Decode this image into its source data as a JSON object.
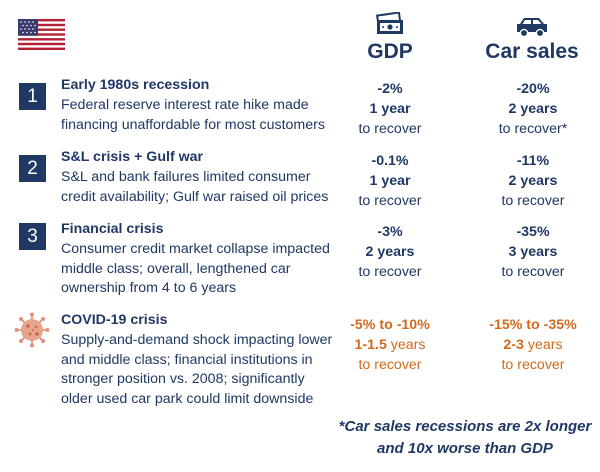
{
  "header": {
    "flag_icon": "us-flag-icon",
    "gdp": {
      "icon": "money-icon",
      "label": "GDP"
    },
    "car_sales": {
      "icon": "car-icon",
      "label": "Car sales"
    }
  },
  "rows": [
    {
      "badge": "1",
      "title": "Early 1980s recession",
      "desc": [
        "Federal reserve interest rate hike made",
        "financing unaffordable for most customers"
      ],
      "gdp": {
        "change": "-2%",
        "duration": "1 year",
        "note": "to recover"
      },
      "car_sales": {
        "change": "-20%",
        "duration": "2 years",
        "note": "to recover*"
      }
    },
    {
      "badge": "2",
      "title": "S&L crisis + Gulf war",
      "desc": [
        "S&L and bank failures limited consumer",
        "credit availability; Gulf war raised oil prices"
      ],
      "gdp": {
        "change": "-0.1%",
        "duration": "1 year",
        "note": "to recover"
      },
      "car_sales": {
        "change": "-11%",
        "duration": "2 years",
        "note": "to recover"
      }
    },
    {
      "badge": "3",
      "title": "Financial crisis",
      "desc": [
        "Consumer credit market collapse impacted",
        "middle class; overall, lengthened car",
        "ownership from 4 to 6 years"
      ],
      "gdp": {
        "change": "-3%",
        "duration": "2 years",
        "note": "to recover"
      },
      "car_sales": {
        "change": "-35%",
        "duration": "3 years",
        "note": "to recover"
      }
    },
    {
      "badge_icon": "virus-icon",
      "title": "COVID-19 crisis",
      "desc": [
        "Supply-and-demand shock impacting lower",
        "and middle class; financial institutions in",
        "stronger position vs. 2008; significantly",
        "older used car park could limit downside"
      ],
      "gdp": {
        "change": "-5% to -10%",
        "duration_bold": "1-1.5",
        "duration_rest": " years",
        "note": "to recover"
      },
      "car_sales": {
        "change": "-15% to -35%",
        "duration_bold": "2-3",
        "duration_rest": " years",
        "note": "to recover"
      }
    }
  ],
  "footnote": [
    "*Car sales recessions are 2x longer",
    "and 10x worse than GDP"
  ],
  "colors": {
    "navy": "#1f3864",
    "orange": "#d2691e",
    "flag_red": "#b22234",
    "flag_blue": "#3c3b6e"
  }
}
